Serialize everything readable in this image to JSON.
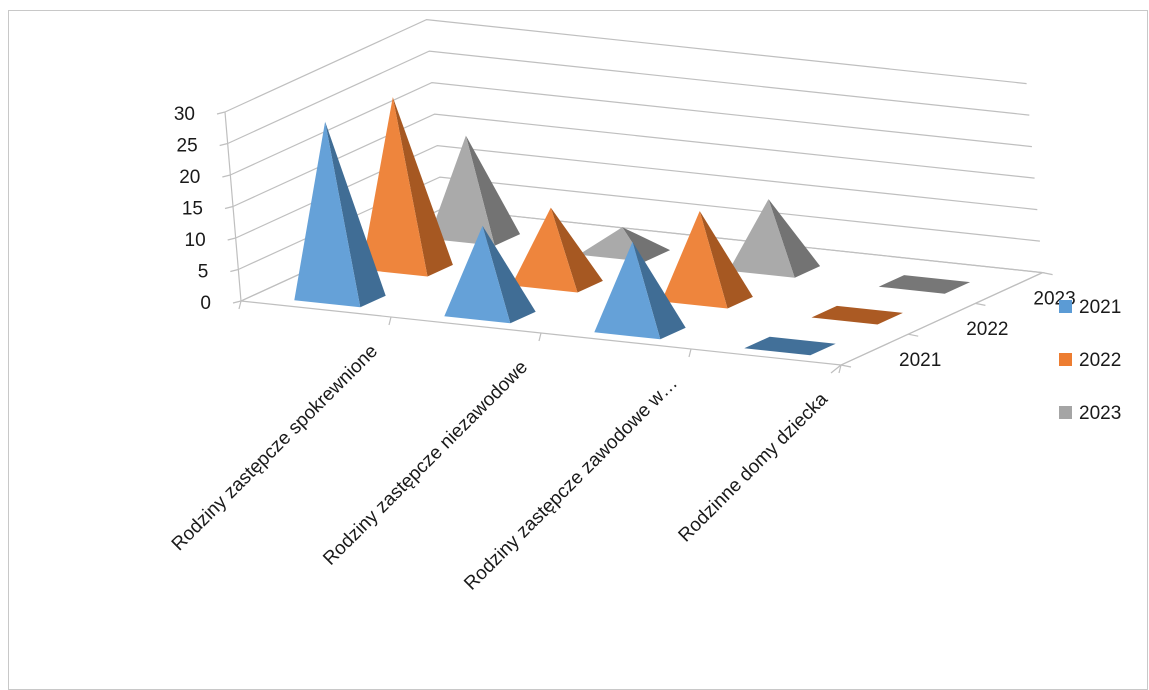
{
  "chart_data": {
    "type": "bar",
    "variant": "3d-pyramid",
    "title": "",
    "categories": [
      "Rodziny zastępcze spokrewnione",
      "Rodziny zastępcze niezawodowe",
      "Rodziny zastępcze zawodowe w…",
      "Rodzinne domy dziecka"
    ],
    "series": [
      {
        "name": "2021",
        "values": [
          28,
          14,
          14,
          0
        ],
        "color": "#5b9bd5"
      },
      {
        "name": "2022",
        "values": [
          27,
          12,
          14,
          0
        ],
        "color": "#ed7d31"
      },
      {
        "name": "2023",
        "values": [
          16,
          4,
          11,
          0
        ],
        "color": "#a5a5a5"
      }
    ],
    "yaxis": {
      "min": 0,
      "max": 30,
      "ticks": [
        "0",
        "5",
        "10",
        "15",
        "20",
        "25",
        "30"
      ]
    },
    "depth_labels": [
      "2021",
      "2022",
      "2023"
    ],
    "legend": {
      "position": "right",
      "items": [
        {
          "label": "2021",
          "color": "#5b9bd5"
        },
        {
          "label": "2022",
          "color": "#ed7d31"
        },
        {
          "label": "2023",
          "color": "#a5a5a5"
        }
      ]
    },
    "gridlines": true
  }
}
